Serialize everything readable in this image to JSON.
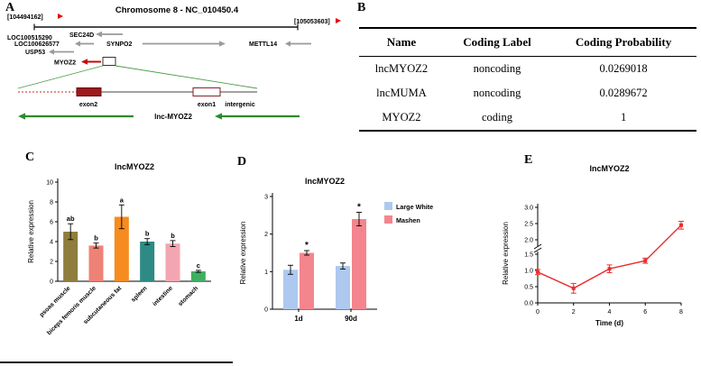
{
  "panels": {
    "a": {
      "label": "A",
      "title": "Chromosome 8 - NC_010450.4",
      "coord_left": "[104494162]",
      "coord_right": "[105053603]",
      "genes": {
        "loc1": "LOC100515290",
        "sec24d": "SEC24D",
        "loc2": "LOC100626577",
        "synpo2": "SYNPO2",
        "mettl14": "METTL14",
        "usp53": "USP53",
        "myoz2": "MYOZ2"
      },
      "transcript": {
        "exon2": "exon2",
        "exon1": "exon1",
        "intergenic": "intergenic",
        "lnc_label": "lnc-MYOZ2"
      }
    },
    "b": {
      "label": "B",
      "table": {
        "headers": [
          "Name",
          "Coding Label",
          "Coding Probability"
        ],
        "rows": [
          [
            "lncMYOZ2",
            "noncoding",
            "0.0269018"
          ],
          [
            "lncMUMA",
            "noncoding",
            "0.0289672"
          ],
          [
            "MYOZ2",
            "coding",
            "1"
          ]
        ]
      }
    },
    "c": {
      "label": "C"
    },
    "d": {
      "label": "D"
    },
    "e": {
      "label": "E"
    }
  },
  "chart_data": [
    {
      "id": "panelC",
      "type": "bar",
      "title": "lncMYOZ2",
      "ylabel": "Relative expression",
      "ylim": [
        0,
        10
      ],
      "yticks": [
        0,
        2,
        4,
        6,
        8,
        10
      ],
      "categories": [
        "psoas muscle",
        "biceps femoris muscle",
        "subcutaneous fat",
        "spleen",
        "intestine",
        "stomach"
      ],
      "values": [
        5.0,
        3.6,
        6.5,
        4.0,
        3.8,
        1.0
      ],
      "errors": [
        0.8,
        0.25,
        1.2,
        0.3,
        0.3,
        0.1
      ],
      "sig_letters": [
        "ab",
        "b",
        "a",
        "b",
        "b",
        "c"
      ],
      "colors": [
        "#8e7d3c",
        "#ef8276",
        "#f68b1f",
        "#2d8a84",
        "#f3a6b1",
        "#3fae62"
      ],
      "legend": "none",
      "grid": false
    },
    {
      "id": "panelD",
      "type": "bar",
      "title": "lncMYOZ2",
      "ylabel": "Relative expression",
      "ylim": [
        0,
        3
      ],
      "yticks": [
        0,
        1,
        2,
        3
      ],
      "categories": [
        "1d",
        "90d"
      ],
      "series": [
        {
          "name": "Large White",
          "color": "#aec9ef",
          "values": [
            1.05,
            1.15
          ],
          "errors": [
            0.12,
            0.08
          ],
          "sig": [
            "",
            ""
          ]
        },
        {
          "name": "Mashen",
          "color": "#f4858e",
          "values": [
            1.5,
            2.4
          ],
          "errors": [
            0.06,
            0.18
          ],
          "sig": [
            "*",
            "*"
          ]
        }
      ],
      "legend_position": "right",
      "grid": false
    },
    {
      "id": "panelE",
      "type": "line",
      "title": "lncMYOZ2",
      "ylabel": "Relative expression",
      "xlabel": "Time (d)",
      "x": [
        0,
        2,
        4,
        6,
        8
      ],
      "values": [
        0.95,
        0.45,
        1.05,
        1.3,
        2.45
      ],
      "errors": [
        0.08,
        0.15,
        0.12,
        0.08,
        0.12
      ],
      "xticks": [
        0,
        2,
        4,
        6,
        8
      ],
      "yticks_lower": [
        0.0,
        0.5,
        1.0,
        1.5
      ],
      "yticks_upper": [
        2.0,
        2.5,
        3.0
      ],
      "axis_break": true,
      "color": "#ed2d2d",
      "grid": false
    }
  ]
}
